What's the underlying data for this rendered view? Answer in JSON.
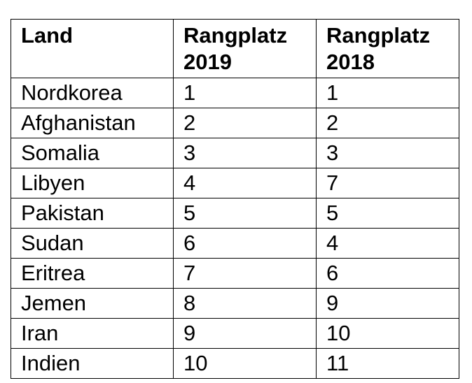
{
  "table": {
    "headers": {
      "land": "Land",
      "rank2019_line1": "Rangplatz",
      "rank2019_line2": "2019",
      "rank2018_line1": "Rangplatz",
      "rank2018_line2": "2018"
    },
    "rows": [
      {
        "land": "Nordkorea",
        "rank2019": "1",
        "rank2018": "1"
      },
      {
        "land": "Afghanistan",
        "rank2019": "2",
        "rank2018": "2"
      },
      {
        "land": "Somalia",
        "rank2019": "3",
        "rank2018": "3"
      },
      {
        "land": "Libyen",
        "rank2019": "4",
        "rank2018": "7"
      },
      {
        "land": "Pakistan",
        "rank2019": "5",
        "rank2018": "5"
      },
      {
        "land": "Sudan",
        "rank2019": "6",
        "rank2018": "4"
      },
      {
        "land": "Eritrea",
        "rank2019": "7",
        "rank2018": "6"
      },
      {
        "land": "Jemen",
        "rank2019": "8",
        "rank2018": "9"
      },
      {
        "land": "Iran",
        "rank2019": "9",
        "rank2018": "10"
      },
      {
        "land": "Indien",
        "rank2019": "10",
        "rank2018": "11"
      }
    ]
  }
}
